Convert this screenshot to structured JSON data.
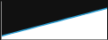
{
  "chart_data": {
    "type": "area",
    "x": [
      0,
      1,
      2,
      3,
      4,
      5,
      6,
      7,
      8,
      9,
      10,
      11,
      12,
      13,
      14,
      15,
      16,
      17,
      18,
      19
    ],
    "values": [
      1,
      1.5,
      2,
      2.5,
      3,
      3.5,
      4,
      4.5,
      5,
      5.5,
      6,
      6.5,
      7,
      7.5,
      8,
      8.5,
      9,
      9.5,
      10,
      10.5
    ],
    "color": "#2b9fd4",
    "xlim": [
      0,
      19
    ],
    "ylim": [
      0,
      13
    ],
    "tick_labels": false
  }
}
